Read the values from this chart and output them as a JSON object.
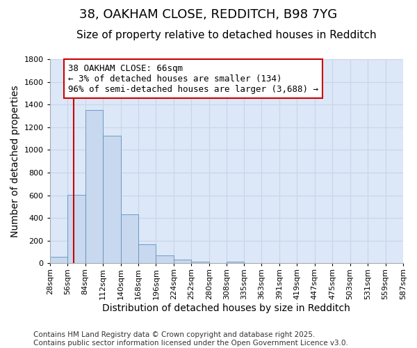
{
  "title_line1": "38, OAKHAM CLOSE, REDDITCH, B98 7YG",
  "title_line2": "Size of property relative to detached houses in Redditch",
  "xlabel": "Distribution of detached houses by size in Redditch",
  "ylabel": "Number of detached properties",
  "bar_values": [
    55,
    605,
    1355,
    1125,
    430,
    170,
    70,
    35,
    15,
    0,
    15,
    0,
    0,
    0,
    0,
    0,
    0,
    0,
    0,
    0
  ],
  "bin_edges": [
    28,
    56,
    84,
    112,
    140,
    168,
    196,
    224,
    252,
    280,
    308,
    335,
    363,
    391,
    419,
    447,
    475,
    503,
    531,
    559,
    587
  ],
  "tick_labels": [
    "28sqm",
    "56sqm",
    "84sqm",
    "112sqm",
    "140sqm",
    "168sqm",
    "196sqm",
    "224sqm",
    "252sqm",
    "280sqm",
    "308sqm",
    "335sqm",
    "363sqm",
    "391sqm",
    "419sqm",
    "447sqm",
    "475sqm",
    "503sqm",
    "531sqm",
    "559sqm",
    "587sqm"
  ],
  "bar_color": "#c8d8ee",
  "bar_edge_color": "#6090c0",
  "vline_x": 66,
  "vline_color": "#cc0000",
  "annotation_text": "38 OAKHAM CLOSE: 66sqm\n← 3% of detached houses are smaller (134)\n96% of semi-detached houses are larger (3,688) →",
  "annotation_box_color": "#ffffff",
  "annotation_box_edge": "#cc0000",
  "ylim": [
    0,
    1800
  ],
  "yticks": [
    0,
    200,
    400,
    600,
    800,
    1000,
    1200,
    1400,
    1600,
    1800
  ],
  "background_color": "#dce8f8",
  "fig_background_color": "#ffffff",
  "footer_text": "Contains HM Land Registry data © Crown copyright and database right 2025.\nContains public sector information licensed under the Open Government Licence v3.0.",
  "grid_color": "#c8d4e8",
  "title_fontsize": 13,
  "subtitle_fontsize": 11,
  "axis_label_fontsize": 10,
  "tick_fontsize": 8,
  "annotation_fontsize": 9,
  "footer_fontsize": 7.5
}
